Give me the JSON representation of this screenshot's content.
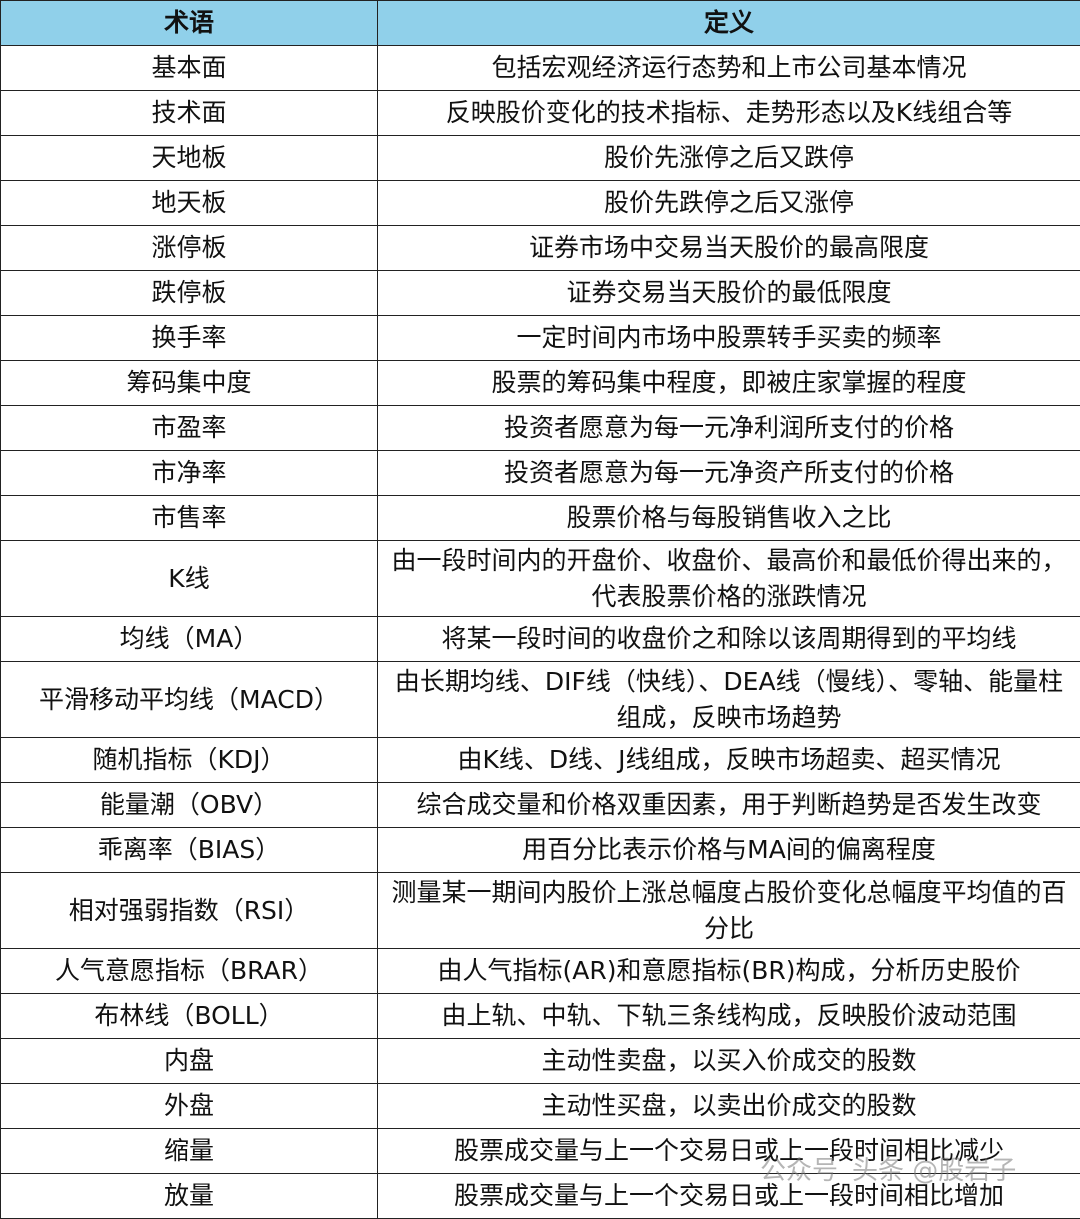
{
  "table": {
    "header": [
      "术语",
      "定义"
    ],
    "rows": [
      [
        "基本面",
        "包括宏观经济运行态势和上市公司基本情况"
      ],
      [
        "技术面",
        "反映股价变化的技术指标、走势形态以及K线组合等"
      ],
      [
        "天地板",
        "股价先涨停之后又跌停"
      ],
      [
        "地天板",
        "股价先跌停之后又涨停"
      ],
      [
        "涨停板",
        "证券市场中交易当天股价的最高限度"
      ],
      [
        "跌停板",
        "证券交易当天股价的最低限度"
      ],
      [
        "换手率",
        "一定时间内市场中股票转手买卖的频率"
      ],
      [
        "筹码集中度",
        "股票的筹码集中程度，即被庄家掌握的程度"
      ],
      [
        "市盈率",
        "投资者愿意为每一元净利润所支付的价格"
      ],
      [
        "市净率",
        "投资者愿意为每一元净资产所支付的价格"
      ],
      [
        "市售率",
        "股票价格与每股销售收入之比"
      ],
      [
        "K线",
        "由一段时间内的开盘价、收盘价、最高价和最低价得出来的，代表股票价格的涨跌情况"
      ],
      [
        "均线（MA）",
        "将某一段时间的收盘价之和除以该周期得到的平均线"
      ],
      [
        "平滑移动平均线（MACD）",
        "由长期均线、DIF线（快线）、DEA线（慢线）、零轴、能量柱组成，反映市场趋势"
      ],
      [
        "随机指标（KDJ）",
        "由K线、D线、J线组成，反映市场超卖、超买情况"
      ],
      [
        "能量潮（OBV）",
        "综合成交量和价格双重因素，用于判断趋势是否发生改变"
      ],
      [
        "乖离率（BIAS）",
        "用百分比表示价格与MA间的偏离程度"
      ],
      [
        "相对强弱指数（RSI）",
        "测量某一期间内股价上涨总幅度占股价变化总幅度平均值的百分比"
      ],
      [
        "人气意愿指标（BRAR）",
        "由人气指标(AR)和意愿指标(BR)构成，分析历史股价"
      ],
      [
        "布林线（BOLL）",
        "由上轨、中轨、下轨三条线构成，反映股价波动范围"
      ],
      [
        "内盘",
        "主动性卖盘，以买入价成交的股数"
      ],
      [
        "外盘",
        "主动性买盘，以卖出价成交的股数"
      ],
      [
        "缩量",
        "股票成交量与上一个交易日或上一段时间相比减少"
      ],
      [
        "放量",
        "股票成交量与上一个交易日或上一段时间相比增加"
      ]
    ]
  },
  "watermark": [
    "公众号",
    "头条 @股岩子"
  ]
}
